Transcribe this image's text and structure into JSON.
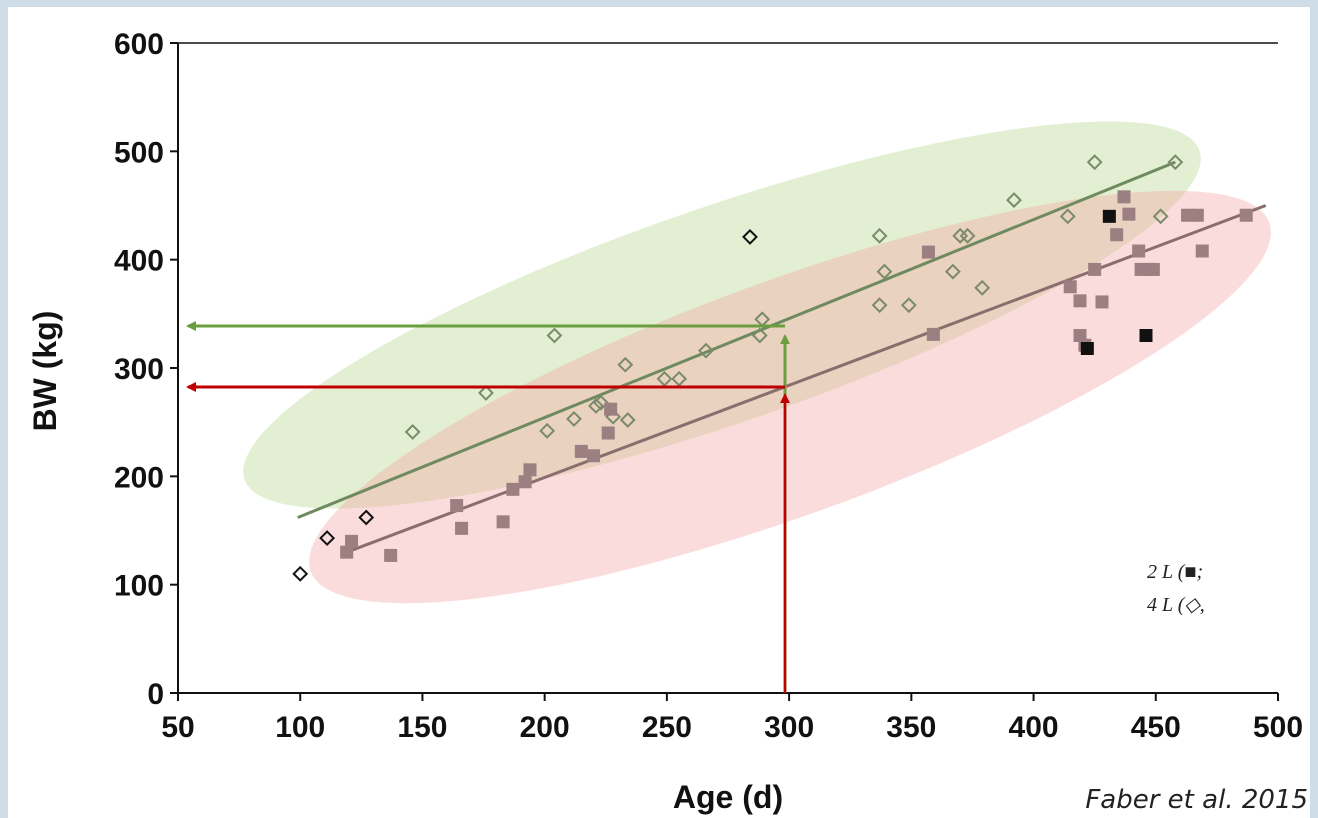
{
  "chart_data": {
    "type": "scatter",
    "xlabel": "Age (d)",
    "ylabel": "BW (kg)",
    "xlim": [
      50,
      500
    ],
    "ylim": [
      0,
      600
    ],
    "x_ticks": [
      "50",
      "100",
      "150",
      "200",
      "250",
      "300",
      "350",
      "400",
      "450",
      "500"
    ],
    "y_ticks": [
      "0",
      "100",
      "200",
      "300",
      "400",
      "500",
      "600"
    ],
    "grid": false,
    "legend_position": "bottom-right",
    "legend": [
      {
        "label": "2 L (■;",
        "marker": "square"
      },
      {
        "label": "4 L (◇,",
        "marker": "diamond"
      }
    ],
    "series": [
      {
        "label_ref": 1,
        "marker": "diamond",
        "color": "#7a8a6a",
        "points": [
          [
            100,
            110
          ],
          [
            111,
            143
          ],
          [
            127,
            162
          ],
          [
            146,
            241
          ],
          [
            176,
            277
          ],
          [
            201,
            242
          ],
          [
            204,
            330
          ],
          [
            212,
            253
          ],
          [
            221,
            265
          ],
          [
            223,
            268
          ],
          [
            228,
            255
          ],
          [
            233,
            303
          ],
          [
            234,
            252
          ],
          [
            249,
            290
          ],
          [
            255,
            290
          ],
          [
            266,
            316
          ],
          [
            284,
            421
          ],
          [
            288,
            330
          ],
          [
            289,
            345
          ],
          [
            337,
            422
          ],
          [
            337,
            358
          ],
          [
            339,
            389
          ],
          [
            349,
            358
          ],
          [
            367,
            389
          ],
          [
            370,
            422
          ],
          [
            373,
            422
          ],
          [
            379,
            374
          ],
          [
            392,
            455
          ],
          [
            414,
            440
          ],
          [
            425,
            490
          ],
          [
            452,
            440
          ],
          [
            458,
            490
          ]
        ],
        "fit": {
          "x": [
            99,
            458
          ],
          "y": [
            162,
            490
          ],
          "color": "#6e8a5e"
        }
      },
      {
        "label_ref": 0,
        "marker": "square",
        "color": "#9c7f80",
        "points": [
          [
            119,
            130
          ],
          [
            121,
            140
          ],
          [
            137,
            127
          ],
          [
            164,
            173
          ],
          [
            166,
            152
          ],
          [
            183,
            158
          ],
          [
            187,
            188
          ],
          [
            192,
            195
          ],
          [
            194,
            206
          ],
          [
            215,
            223
          ],
          [
            220,
            219
          ],
          [
            226,
            240
          ],
          [
            227,
            262
          ],
          [
            357,
            407
          ],
          [
            359,
            331
          ],
          [
            415,
            375
          ],
          [
            419,
            362
          ],
          [
            419,
            330
          ],
          [
            421,
            321
          ],
          [
            425,
            391
          ],
          [
            428,
            361
          ],
          [
            434,
            423
          ],
          [
            437,
            458
          ],
          [
            439,
            442
          ],
          [
            443,
            408
          ],
          [
            444,
            391
          ],
          [
            447,
            391
          ],
          [
            449,
            391
          ],
          [
            463,
            441
          ],
          [
            467,
            441
          ],
          [
            469,
            408
          ],
          [
            487,
            441
          ],
          [
            422,
            318
          ],
          [
            431,
            440
          ],
          [
            446,
            330
          ]
        ],
        "fit": {
          "x": [
            119,
            495
          ],
          "y": [
            130,
            450
          ],
          "color": "#8a6e6e"
        }
      }
    ],
    "annotations": [
      {
        "type": "ellipse",
        "color": "#b5d58a",
        "opacity": 0.38
      },
      {
        "type": "ellipse",
        "color": "#f4a3a3",
        "opacity": 0.38
      },
      {
        "type": "arrow",
        "color": "#6a9e3e",
        "from": [
          298,
          0
        ],
        "to": [
          298,
          341
        ]
      },
      {
        "type": "arrow",
        "color": "#6a9e3e",
        "from": [
          298,
          341
        ],
        "to": [
          50,
          341
        ]
      },
      {
        "type": "arrow",
        "color": "#c00000",
        "from": [
          298,
          0
        ],
        "to": [
          298,
          284
        ]
      },
      {
        "type": "arrow",
        "color": "#c00000",
        "from": [
          298,
          284
        ],
        "to": [
          50,
          284
        ]
      }
    ]
  },
  "citation": "Faber et al. 2015"
}
